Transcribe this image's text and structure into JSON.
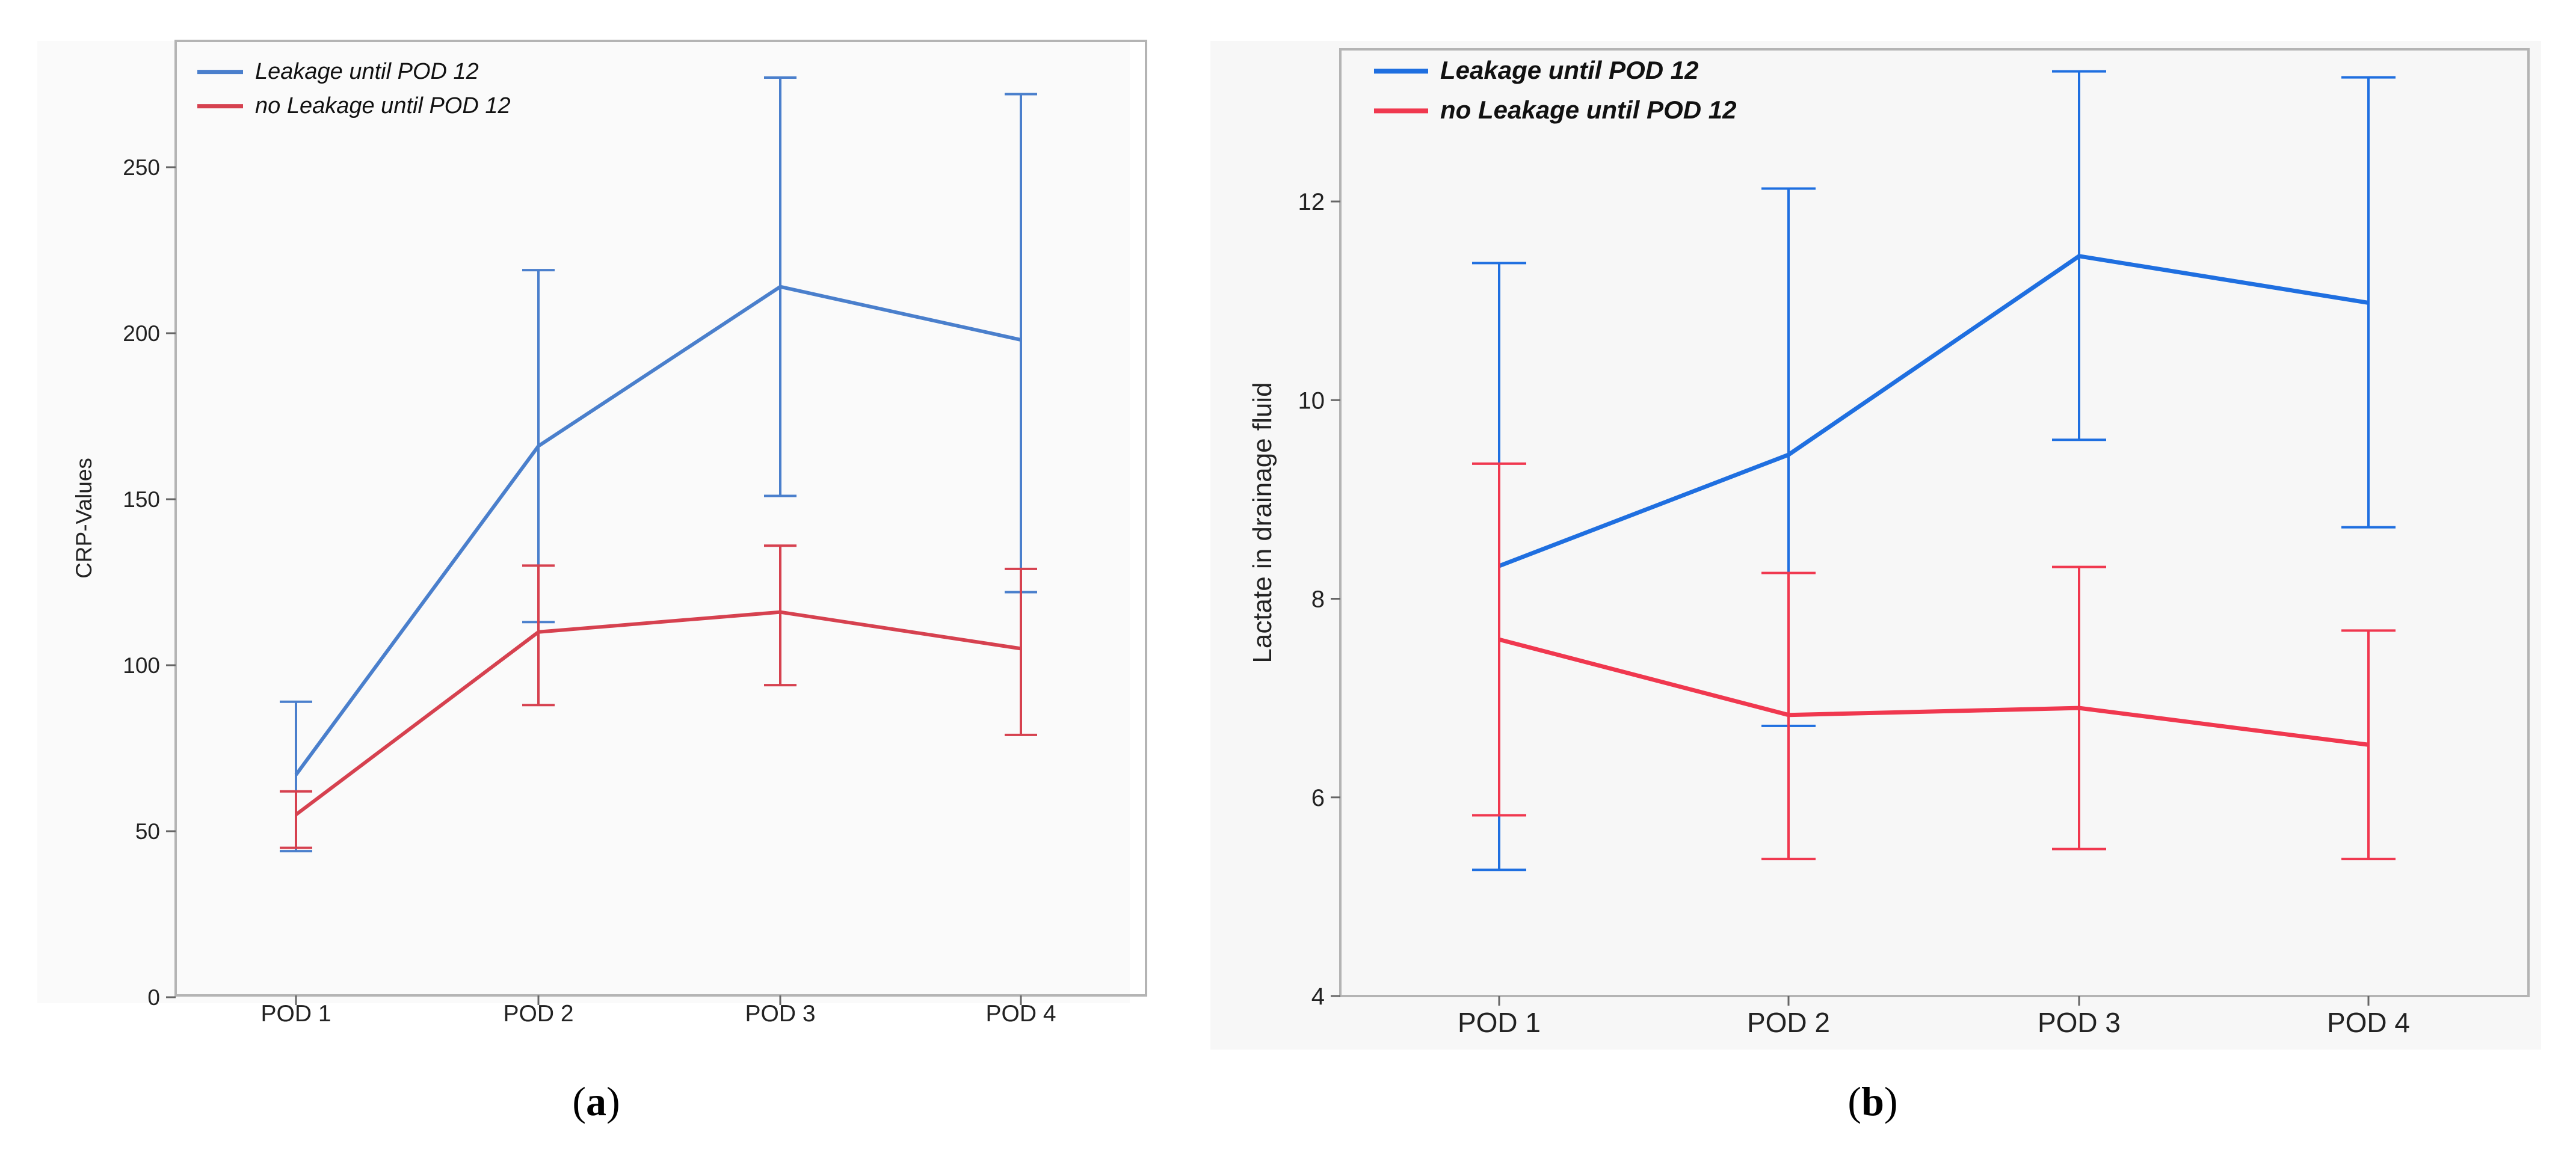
{
  "colors": {
    "leak_a": "#4a7fcc",
    "noleak_a": "#d6414f",
    "leak_b": "#1f6fe0",
    "noleak_b": "#f0384f",
    "panel_a_bg": "#fafafa",
    "panel_b_bg": "#f7f7f7",
    "frame": "#b4b4b4",
    "text": "#222222"
  },
  "captions": [
    {
      "paren_open": "(",
      "letter": "a",
      "paren_close": ")"
    },
    {
      "paren_open": "(",
      "letter": "b",
      "paren_close": ")"
    }
  ],
  "chart_data": [
    {
      "type": "line",
      "panel": "a",
      "title": "",
      "xlabel": "",
      "ylabel": "CRP-Values",
      "categories": [
        "POD 1",
        "POD 2",
        "POD 3",
        "POD 4"
      ],
      "ylim": [
        0,
        275
      ],
      "yticks": [
        0,
        50,
        100,
        150,
        200,
        250
      ],
      "legend": "top-left",
      "grid": false,
      "series": [
        {
          "name": "Leakage until POD 12",
          "color_key": "leak_a",
          "values": [
            67,
            166,
            214,
            198
          ],
          "err_low": [
            44,
            113,
            151,
            122
          ],
          "err_high": [
            89,
            219,
            277,
            272
          ]
        },
        {
          "name": "no Leakage until POD 12",
          "color_key": "noleak_a",
          "values": [
            55,
            110,
            116,
            105
          ],
          "err_low": [
            45,
            88,
            94,
            79
          ],
          "err_high": [
            62,
            130,
            136,
            129
          ]
        }
      ]
    },
    {
      "type": "line",
      "panel": "b",
      "title": "",
      "xlabel": "",
      "ylabel": "Lactate in drainage fluid",
      "categories": [
        "POD 1",
        "POD 2",
        "POD 3",
        "POD 4"
      ],
      "ylim": [
        4,
        13.5
      ],
      "yticks": [
        4,
        6,
        8,
        10,
        12
      ],
      "legend": "top-left",
      "grid": false,
      "series": [
        {
          "name": "Leakage until POD 12",
          "color_key": "leak_b",
          "values": [
            8.33,
            9.45,
            11.45,
            10.98
          ],
          "err_low": [
            5.27,
            6.72,
            9.6,
            8.72
          ],
          "err_high": [
            11.38,
            12.13,
            13.31,
            13.25
          ]
        },
        {
          "name": "no Leakage until POD 12",
          "color_key": "noleak_b",
          "values": [
            7.59,
            6.83,
            6.9,
            6.53
          ],
          "err_low": [
            5.82,
            5.38,
            5.48,
            5.38
          ],
          "err_high": [
            9.36,
            8.26,
            8.32,
            7.68
          ]
        }
      ]
    }
  ]
}
